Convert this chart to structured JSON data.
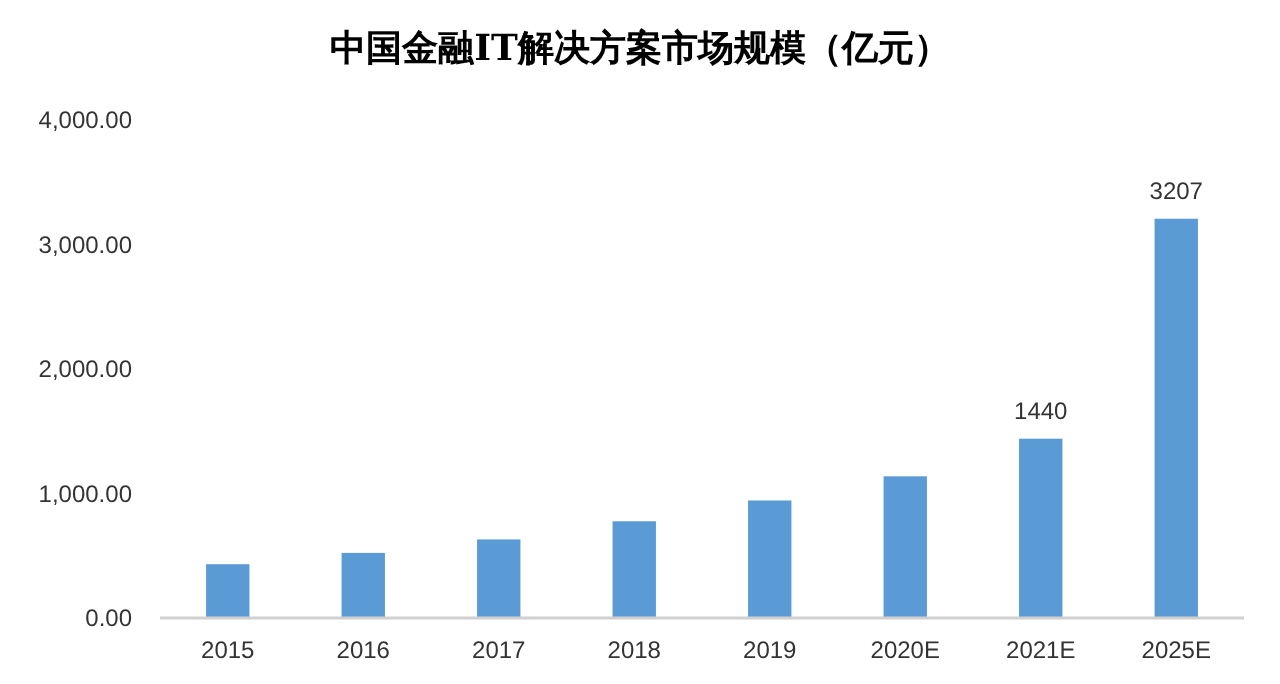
{
  "chart_data": {
    "type": "bar",
    "title": "中国金融IT解决方案市场规模（亿元）",
    "categories": [
      "2015",
      "2016",
      "2017",
      "2018",
      "2019",
      "2020E",
      "2021E",
      "2025E"
    ],
    "values": [
      432,
      523,
      631,
      777,
      944,
      1138,
      1440,
      3207
    ],
    "value_labels": [
      null,
      null,
      null,
      null,
      null,
      null,
      "1440",
      "3207"
    ],
    "color": "#5b9bd5",
    "ylim": [
      0,
      4000
    ],
    "yticks": [
      {
        "value": 0,
        "label": "0.00"
      },
      {
        "value": 1000,
        "label": "1,000.00"
      },
      {
        "value": 2000,
        "label": "2,000.00"
      },
      {
        "value": 3000,
        "label": "3,000.00"
      },
      {
        "value": 4000,
        "label": "4,000.00"
      }
    ],
    "grid": false
  }
}
